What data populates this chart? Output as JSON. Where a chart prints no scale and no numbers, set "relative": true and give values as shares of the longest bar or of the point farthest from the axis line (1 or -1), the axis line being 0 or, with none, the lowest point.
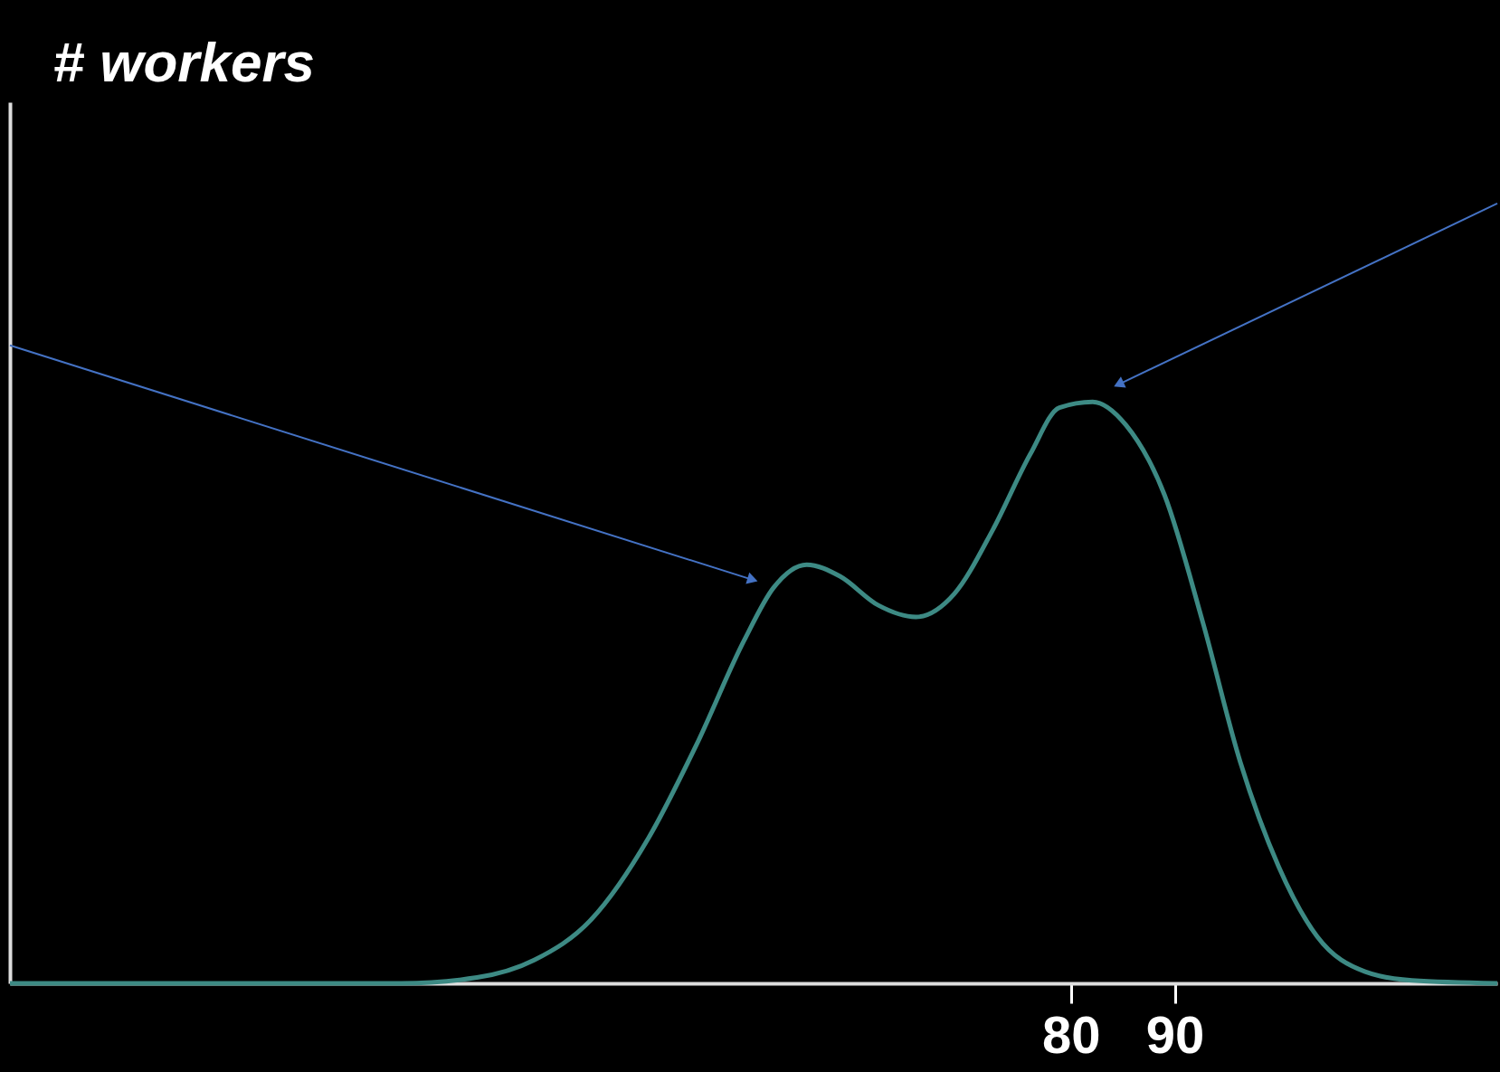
{
  "chart_data": {
    "type": "line",
    "annotations": [
      "# workers"
    ],
    "relative": true,
    "tick_labels": "x",
    "x": [
      -22,
      15.6,
      22.9,
      28.4,
      33.9,
      39.4,
      44.0,
      48.6,
      51.4,
      54.6,
      57.8,
      61.5,
      65.1,
      68.8,
      72.5,
      76.1,
      78.9,
      82.1,
      85.3,
      89.0,
      92.7,
      96.3,
      100.0,
      103.7,
      108.3,
      112.8,
      121
    ],
    "series": [
      {
        "color": "#3d8a84",
        "values": [
          0,
          0,
          0.01,
          0.04,
          0.11,
          0.25,
          0.41,
          0.59,
          0.68,
          0.72,
          0.7,
          0.65,
          0.63,
          0.67,
          0.78,
          0.91,
          0.99,
          1,
          0.96,
          0.84,
          0.62,
          0.38,
          0.2,
          0.08,
          0.02,
          0.005,
          0
        ]
      }
    ],
    "xlim": [
      -22,
      121
    ],
    "xticks": [
      80,
      90
    ],
    "grid": false,
    "marker": "none",
    "line_style": "solid"
  }
}
